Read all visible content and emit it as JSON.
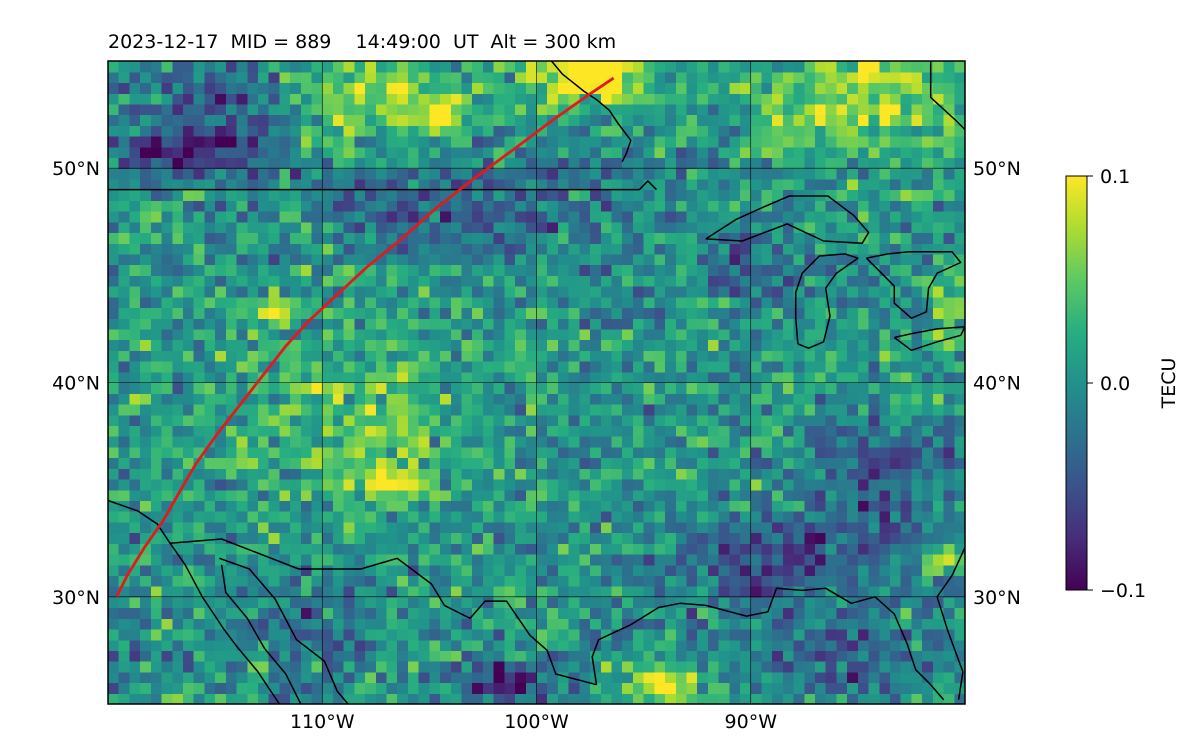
{
  "title": "2023-12-17  MID = 889    14:49:00  UT  Alt = 300 km",
  "map": {
    "lon_range": [
      -120,
      -80
    ],
    "lat_range": [
      25,
      55
    ],
    "lon_ticks": [
      {
        "value": -110,
        "label": "110°W"
      },
      {
        "value": -100,
        "label": "100°W"
      },
      {
        "value": -90,
        "label": "90°W"
      }
    ],
    "lat_ticks": [
      {
        "value": 50,
        "label": "50°N"
      },
      {
        "value": 40,
        "label": "40°N"
      },
      {
        "value": 30,
        "label": "30°N"
      }
    ],
    "grid": true
  },
  "colorbar": {
    "label": "TECU",
    "colormap": "viridis",
    "range": [
      -0.1,
      0.1
    ],
    "ticks": [
      {
        "value": 0.1,
        "label": "0.1"
      },
      {
        "value": 0.0,
        "label": "0.0"
      },
      {
        "value": -0.1,
        "label": "−0.1"
      }
    ]
  },
  "track": {
    "color": "#e31a1c",
    "points": [
      [
        -119.6,
        30.0
      ],
      [
        -119.1,
        31.0
      ],
      [
        -118.3,
        32.3
      ],
      [
        -117.4,
        33.6
      ],
      [
        -116.6,
        35.0
      ],
      [
        -115.9,
        36.2
      ],
      [
        -114.9,
        37.6
      ],
      [
        -113.8,
        39.0
      ],
      [
        -112.8,
        40.3
      ],
      [
        -111.7,
        41.7
      ],
      [
        -110.6,
        42.9
      ],
      [
        -109.3,
        44.1
      ],
      [
        -107.9,
        45.4
      ],
      [
        -106.3,
        46.7
      ],
      [
        -104.6,
        48.2
      ],
      [
        -102.8,
        49.6
      ],
      [
        -100.9,
        51.0
      ],
      [
        -99.3,
        52.2
      ],
      [
        -97.6,
        53.4
      ],
      [
        -96.4,
        54.2
      ]
    ]
  },
  "coastlines": [
    {
      "name": "us-canada-border",
      "points": [
        [
          -120,
          49.0
        ],
        [
          -95.2,
          49.0
        ],
        [
          -94.8,
          49.4
        ],
        [
          -94.4,
          49.0
        ]
      ]
    },
    {
      "name": "lake-superior",
      "points": [
        [
          -92.1,
          46.7
        ],
        [
          -90.4,
          46.6
        ],
        [
          -88.3,
          47.4
        ],
        [
          -86.6,
          46.6
        ],
        [
          -84.8,
          46.5
        ],
        [
          -84.5,
          47.0
        ],
        [
          -85.2,
          47.8
        ],
        [
          -86.4,
          48.7
        ],
        [
          -88.2,
          48.7
        ],
        [
          -89.6,
          48.1
        ],
        [
          -90.7,
          47.6
        ],
        [
          -92.1,
          46.7
        ]
      ]
    },
    {
      "name": "lake-michigan",
      "points": [
        [
          -87.8,
          41.8
        ],
        [
          -87.3,
          41.6
        ],
        [
          -86.6,
          41.9
        ],
        [
          -86.3,
          43.1
        ],
        [
          -86.5,
          44.4
        ],
        [
          -86.0,
          45.1
        ],
        [
          -85.0,
          45.8
        ],
        [
          -85.6,
          46.0
        ],
        [
          -86.8,
          45.9
        ],
        [
          -87.6,
          45.1
        ],
        [
          -87.9,
          44.2
        ],
        [
          -87.9,
          43.0
        ],
        [
          -87.8,
          41.8
        ]
      ]
    },
    {
      "name": "lake-huron",
      "points": [
        [
          -84.6,
          45.8
        ],
        [
          -84.1,
          45.3
        ],
        [
          -83.3,
          44.5
        ],
        [
          -83.3,
          43.7
        ],
        [
          -82.5,
          43.0
        ],
        [
          -81.8,
          43.3
        ],
        [
          -81.7,
          44.4
        ],
        [
          -81.3,
          45.1
        ],
        [
          -80.2,
          45.6
        ],
        [
          -80.6,
          46.1
        ],
        [
          -81.6,
          46.1
        ],
        [
          -82.6,
          46.1
        ],
        [
          -83.6,
          46.0
        ],
        [
          -84.6,
          45.8
        ]
      ]
    },
    {
      "name": "lake-erie",
      "points": [
        [
          -83.3,
          42.1
        ],
        [
          -82.5,
          41.5
        ],
        [
          -81.3,
          41.9
        ],
        [
          -80.2,
          42.2
        ],
        [
          -80.0,
          42.6
        ],
        [
          -81.3,
          42.5
        ],
        [
          -82.4,
          42.3
        ],
        [
          -83.3,
          42.1
        ]
      ]
    },
    {
      "name": "hudson-bay",
      "points": [
        [
          -99.3,
          55.0
        ],
        [
          -98.8,
          54.4
        ],
        [
          -98.3,
          54.0
        ],
        [
          -97.8,
          53.6
        ],
        [
          -97.2,
          53.2
        ],
        [
          -96.6,
          52.7
        ],
        [
          -96.2,
          52.1
        ],
        [
          -95.6,
          51.3
        ],
        [
          -95.8,
          50.7
        ],
        [
          -96.0,
          50.3
        ]
      ]
    },
    {
      "name": "james-bay",
      "points": [
        [
          -81.6,
          55.0
        ],
        [
          -81.6,
          53.3
        ],
        [
          -80.4,
          52.2
        ],
        [
          -80.0,
          51.8
        ]
      ]
    },
    {
      "name": "gulf-coast",
      "points": [
        [
          -97.2,
          25.9
        ],
        [
          -97.4,
          27.2
        ],
        [
          -97.1,
          28.0
        ],
        [
          -95.6,
          28.7
        ],
        [
          -94.3,
          29.5
        ],
        [
          -93.3,
          29.7
        ],
        [
          -92.1,
          29.6
        ],
        [
          -90.2,
          29.1
        ],
        [
          -89.2,
          29.3
        ],
        [
          -88.8,
          30.4
        ],
        [
          -87.6,
          30.3
        ],
        [
          -86.5,
          30.4
        ],
        [
          -85.3,
          29.7
        ],
        [
          -84.2,
          30.0
        ],
        [
          -83.3,
          29.2
        ],
        [
          -82.7,
          27.8
        ],
        [
          -82.3,
          26.6
        ],
        [
          -81.6,
          25.9
        ],
        [
          -81.0,
          25.2
        ]
      ]
    },
    {
      "name": "florida-east",
      "points": [
        [
          -80.0,
          32.3
        ],
        [
          -80.6,
          31.0
        ],
        [
          -81.3,
          30.0
        ],
        [
          -80.8,
          28.4
        ],
        [
          -80.1,
          26.5
        ],
        [
          -80.3,
          25.2
        ]
      ]
    },
    {
      "name": "us-mexico-border",
      "points": [
        [
          -117.1,
          32.5
        ],
        [
          -114.7,
          32.7
        ],
        [
          -111.1,
          31.3
        ],
        [
          -108.2,
          31.3
        ],
        [
          -106.5,
          31.8
        ],
        [
          -104.9,
          30.6
        ],
        [
          -104.3,
          29.6
        ],
        [
          -103.1,
          29.0
        ],
        [
          -102.4,
          29.8
        ],
        [
          -101.4,
          29.8
        ],
        [
          -100.3,
          28.2
        ],
        [
          -99.5,
          27.5
        ],
        [
          -99.1,
          26.4
        ],
        [
          -97.2,
          25.9
        ]
      ]
    },
    {
      "name": "baja-west",
      "points": [
        [
          -117.1,
          32.5
        ],
        [
          -116.4,
          31.5
        ],
        [
          -115.6,
          30.0
        ],
        [
          -114.6,
          28.5
        ],
        [
          -114.0,
          27.7
        ],
        [
          -113.0,
          26.5
        ],
        [
          -112.0,
          25.0
        ]
      ]
    },
    {
      "name": "gulf-of-california-west",
      "points": [
        [
          -114.7,
          31.5
        ],
        [
          -114.5,
          30.2
        ],
        [
          -113.5,
          29.0
        ],
        [
          -112.7,
          27.6
        ],
        [
          -111.7,
          26.4
        ],
        [
          -111.0,
          25.0
        ]
      ]
    },
    {
      "name": "mainland-mexico-west",
      "points": [
        [
          -114.8,
          31.8
        ],
        [
          -113.4,
          31.3
        ],
        [
          -112.2,
          29.9
        ],
        [
          -111.2,
          28.0
        ],
        [
          -109.9,
          27.0
        ],
        [
          -109.3,
          25.6
        ],
        [
          -108.8,
          25.0
        ]
      ]
    },
    {
      "name": "pacific-west",
      "points": [
        [
          -120,
          34.5
        ],
        [
          -118.6,
          34.0
        ],
        [
          -117.7,
          33.4
        ],
        [
          -117.1,
          32.5
        ]
      ]
    }
  ],
  "tec_field": {
    "n_lon": 80,
    "n_lat": 60,
    "seed": 889,
    "features": [
      {
        "lon": -97.5,
        "lat": 54.5,
        "amp": 0.12,
        "sigma_lon": 2.0,
        "sigma_lat": 1.0
      },
      {
        "lon": -85.0,
        "lat": 53.5,
        "amp": 0.07,
        "sigma_lon": 3.5,
        "sigma_lat": 1.8
      },
      {
        "lon": -104.5,
        "lat": 52.4,
        "amp": 0.09,
        "sigma_lon": 0.8,
        "sigma_lat": 0.6
      },
      {
        "lon": -108.0,
        "lat": 53.5,
        "amp": 0.06,
        "sigma_lon": 3.0,
        "sigma_lat": 1.5
      },
      {
        "lon": -114.5,
        "lat": 53.2,
        "amp": -0.06,
        "sigma_lon": 2.5,
        "sigma_lat": 1.2
      },
      {
        "lon": -116.0,
        "lat": 50.7,
        "amp": -0.09,
        "sigma_lon": 2.5,
        "sigma_lat": 0.8
      },
      {
        "lon": -103.0,
        "lat": 48.5,
        "amp": -0.05,
        "sigma_lon": 5.0,
        "sigma_lat": 1.5
      },
      {
        "lon": -112.5,
        "lat": 43.4,
        "amp": 0.08,
        "sigma_lon": 0.6,
        "sigma_lat": 0.5
      },
      {
        "lon": -109.0,
        "lat": 38.5,
        "amp": 0.04,
        "sigma_lon": 4.0,
        "sigma_lat": 3.0
      },
      {
        "lon": -106.8,
        "lat": 35.3,
        "amp": 0.07,
        "sigma_lon": 1.0,
        "sigma_lat": 0.6
      },
      {
        "lon": -89.0,
        "lat": 31.5,
        "amp": -0.06,
        "sigma_lon": 4.0,
        "sigma_lat": 1.5
      },
      {
        "lon": -84.0,
        "lat": 35.5,
        "amp": -0.05,
        "sigma_lon": 2.5,
        "sigma_lat": 2.0
      },
      {
        "lon": -86.0,
        "lat": 27.0,
        "amp": -0.05,
        "sigma_lon": 3.0,
        "sigma_lat": 1.2
      },
      {
        "lon": -94.0,
        "lat": 26.0,
        "amp": 0.08,
        "sigma_lon": 1.2,
        "sigma_lat": 0.8
      },
      {
        "lon": -81.0,
        "lat": 31.8,
        "amp": 0.07,
        "sigma_lon": 0.7,
        "sigma_lat": 0.5
      },
      {
        "lon": -80.5,
        "lat": 44.0,
        "amp": 0.06,
        "sigma_lon": 0.8,
        "sigma_lat": 1.2
      },
      {
        "lon": -89.5,
        "lat": 45.5,
        "amp": -0.04,
        "sigma_lon": 2.0,
        "sigma_lat": 1.0
      },
      {
        "lon": -110.0,
        "lat": 28.5,
        "amp": -0.04,
        "sigma_lon": 2.0,
        "sigma_lat": 1.5
      },
      {
        "lon": -101.5,
        "lat": 26.0,
        "amp": -0.08,
        "sigma_lon": 1.5,
        "sigma_lat": 0.8
      }
    ]
  }
}
